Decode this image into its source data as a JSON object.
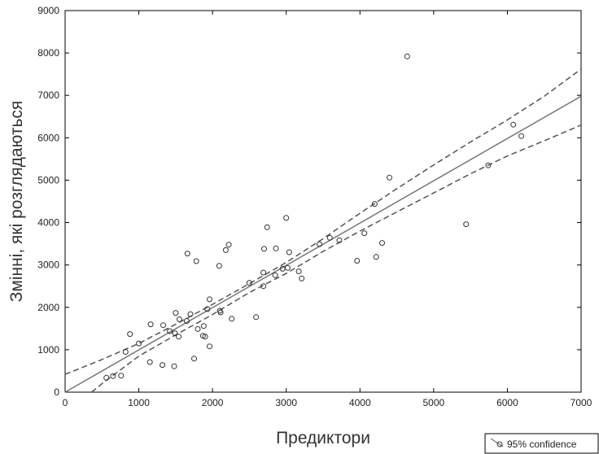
{
  "chart_data": {
    "type": "scatter",
    "title": "",
    "xlabel": "Предиктори",
    "ylabel": "Змінні, які розглядаються",
    "xlim": [
      0,
      7000
    ],
    "ylim": [
      0,
      9000
    ],
    "x_ticks": [
      0,
      1000,
      2000,
      3000,
      4000,
      5000,
      6000,
      7000
    ],
    "y_ticks": [
      0,
      1000,
      2000,
      3000,
      4000,
      5000,
      6000,
      7000,
      8000,
      9000
    ],
    "x_tick_labels": [
      "0",
      "1000",
      "2000",
      "3000",
      "4000",
      "5000",
      "6000",
      "7000"
    ],
    "y_tick_labels": [
      "0",
      "1000",
      "2000",
      "3000",
      "4000",
      "5000",
      "6000",
      "7000",
      "8000",
      "9000"
    ],
    "grid": false,
    "legend": {
      "placement": "bottom-right",
      "entries": [
        "95% confidence"
      ]
    },
    "colors": {
      "points": "#333333",
      "fit_line": "#777777",
      "confidence": "#555555",
      "axis": "#000000"
    },
    "points": [
      [
        560,
        340
      ],
      [
        650,
        380
      ],
      [
        760,
        390
      ],
      [
        820,
        950
      ],
      [
        880,
        1370
      ],
      [
        1000,
        1150
      ],
      [
        1150,
        710
      ],
      [
        1160,
        1600
      ],
      [
        1320,
        640
      ],
      [
        1330,
        1580
      ],
      [
        1420,
        1440
      ],
      [
        1480,
        610
      ],
      [
        1490,
        1390
      ],
      [
        1500,
        1870
      ],
      [
        1540,
        1310
      ],
      [
        1550,
        1720
      ],
      [
        1650,
        1680
      ],
      [
        1660,
        3270
      ],
      [
        1700,
        1840
      ],
      [
        1750,
        790
      ],
      [
        1780,
        3090
      ],
      [
        1800,
        1490
      ],
      [
        1870,
        1330
      ],
      [
        1880,
        1560
      ],
      [
        1900,
        1310
      ],
      [
        1930,
        1960
      ],
      [
        1960,
        2190
      ],
      [
        1960,
        1080
      ],
      [
        2090,
        2980
      ],
      [
        2100,
        1920
      ],
      [
        2110,
        1880
      ],
      [
        2180,
        3350
      ],
      [
        2220,
        3480
      ],
      [
        2260,
        1730
      ],
      [
        2500,
        2580
      ],
      [
        2590,
        1770
      ],
      [
        2690,
        2500
      ],
      [
        2690,
        2820
      ],
      [
        2700,
        3380
      ],
      [
        2740,
        3890
      ],
      [
        2850,
        2760
      ],
      [
        2860,
        3390
      ],
      [
        2950,
        2910
      ],
      [
        3000,
        4110
      ],
      [
        3020,
        2930
      ],
      [
        3040,
        3300
      ],
      [
        3170,
        2850
      ],
      [
        3210,
        2680
      ],
      [
        3450,
        3490
      ],
      [
        3590,
        3640
      ],
      [
        3720,
        3580
      ],
      [
        3960,
        3100
      ],
      [
        4060,
        3750
      ],
      [
        4200,
        4440
      ],
      [
        4220,
        3190
      ],
      [
        4300,
        3520
      ],
      [
        4400,
        5060
      ],
      [
        4640,
        7920
      ],
      [
        5440,
        3960
      ],
      [
        5740,
        5350
      ],
      [
        6080,
        6310
      ],
      [
        6190,
        6040
      ]
    ],
    "fit_line": {
      "x": [
        0,
        7000
      ],
      "y": [
        0,
        6980
      ]
    },
    "confidence_upper": {
      "x": [
        0,
        500,
        1000,
        1500,
        2000,
        2500,
        3000,
        3500,
        4000,
        4500,
        5000,
        5500,
        6000,
        6500,
        7000
      ],
      "y": [
        420,
        770,
        1150,
        1600,
        2070,
        2560,
        3060,
        3620,
        4220,
        4800,
        5360,
        5900,
        6420,
        6980,
        7620
      ]
    },
    "confidence_lower": {
      "x": [
        360,
        500,
        1000,
        1500,
        2000,
        2500,
        3000,
        3500,
        4000,
        4500,
        5000,
        5500,
        6000,
        6500,
        7000
      ],
      "y": [
        0,
        200,
        850,
        1350,
        1830,
        2350,
        2800,
        3320,
        3800,
        4250,
        4700,
        5150,
        5570,
        5930,
        6300
      ]
    }
  }
}
